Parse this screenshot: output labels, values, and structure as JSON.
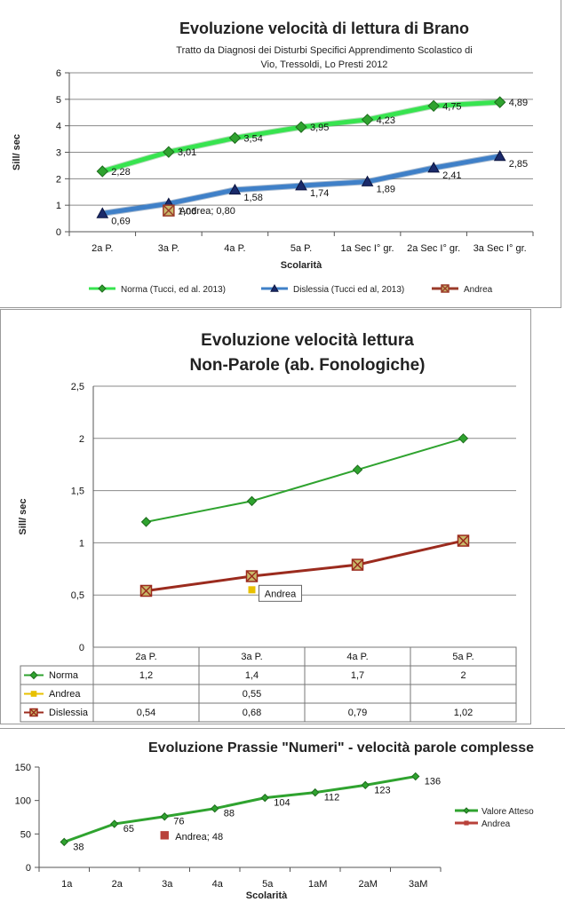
{
  "chart_data": [
    {
      "type": "line",
      "title": "Evoluzione velocità di lettura di Brano",
      "subtitle_line1": "Tratto da Diagnosi dei Disturbi Specifici Apprendimento Scolastico  di",
      "subtitle_line2": "Vio, Tressoldi,  Lo Presti 2012",
      "xlabel": "Scolarità",
      "ylabel": "Sill/ sec",
      "ylim": [
        0,
        6
      ],
      "yticks": [
        "0",
        "1",
        "2",
        "3",
        "4",
        "5",
        "6"
      ],
      "categories": [
        "2a P.",
        "3a P.",
        "4a P.",
        "5a P.",
        "1a Sec I° gr.",
        "2a Sec I° gr.",
        "3a Sec I° gr."
      ],
      "series": [
        {
          "name": "Norma (Tucci, ed al. 2013)",
          "color": "#37e44f",
          "marker": "diamond",
          "values": [
            2.28,
            3.01,
            3.54,
            3.95,
            4.23,
            4.75,
            4.89
          ],
          "labels": [
            "2,28",
            "3,01",
            "3,54",
            "3,95",
            "4,23",
            "4,75",
            "4,89"
          ]
        },
        {
          "name": "Dislessia (Tucci ed al, 2013)",
          "color": "#3f80c8",
          "marker": "triangle",
          "values": [
            0.69,
            1.06,
            1.58,
            1.74,
            1.89,
            2.41,
            2.85
          ],
          "labels": [
            "0,69",
            "1,06",
            "1,58",
            "1,74",
            "1,89",
            "2,41",
            "2,85"
          ]
        },
        {
          "name": "Andrea",
          "color": "#9b3b2a",
          "marker": "square-x",
          "points": [
            {
              "category_index": 1,
              "value": 0.8,
              "label": "Andrea; 0,80"
            }
          ]
        }
      ],
      "legend": "bottom"
    },
    {
      "type": "line",
      "title_line1": "Evoluzione velocità lettura",
      "title_line2": "Non-Parole (ab. Fonologiche)",
      "ylabel": "Sill/ sec",
      "ylim": [
        0,
        2.5
      ],
      "yticks": [
        "0",
        "0,5",
        "1",
        "1,5",
        "2",
        "2,5"
      ],
      "categories": [
        "2a P.",
        "3a P.",
        "4a P.",
        "5a P."
      ],
      "series": [
        {
          "name": "Norma",
          "color": "#2fa32f",
          "marker": "diamond",
          "values": [
            1.2,
            1.4,
            1.7,
            2
          ],
          "table": [
            "1,2",
            "1,4",
            "1,7",
            "2"
          ]
        },
        {
          "name": "Andrea",
          "color": "#e8c000",
          "marker": "square",
          "values": [
            null,
            0.55,
            null,
            null
          ],
          "table": [
            "",
            "0,55",
            "",
            ""
          ],
          "callout": "Andrea"
        },
        {
          "name": "Dislessia",
          "color": "#9b2b1e",
          "marker": "square-x",
          "values": [
            0.54,
            0.68,
            0.79,
            1.02
          ],
          "table": [
            "0,54",
            "0,68",
            "0,79",
            "1,02"
          ]
        }
      ],
      "data_table": true
    },
    {
      "type": "line",
      "title": "Evoluzione  Prassie \"Numeri\" - velocità parole complesse",
      "xlabel": "Scolarità",
      "ylim": [
        0,
        150
      ],
      "yticks": [
        "0",
        "50",
        "100",
        "150"
      ],
      "categories": [
        "1a",
        "2a",
        "3a",
        "4a",
        "5a",
        "1aM",
        "2aM",
        "3aM"
      ],
      "series": [
        {
          "name": "Valore Atteso",
          "color": "#2fa32f",
          "marker": "diamond",
          "values": [
            38,
            65,
            76,
            88,
            104,
            112,
            123,
            136
          ],
          "labels": [
            "38",
            "65",
            "76",
            "88",
            "104",
            "112",
            "123",
            "136"
          ]
        },
        {
          "name": "Andrea",
          "color": "#b8413a",
          "marker": "square",
          "points": [
            {
              "category_index": 2,
              "value": 48,
              "label": "Andrea; 48"
            }
          ]
        }
      ],
      "legend": "right"
    }
  ]
}
